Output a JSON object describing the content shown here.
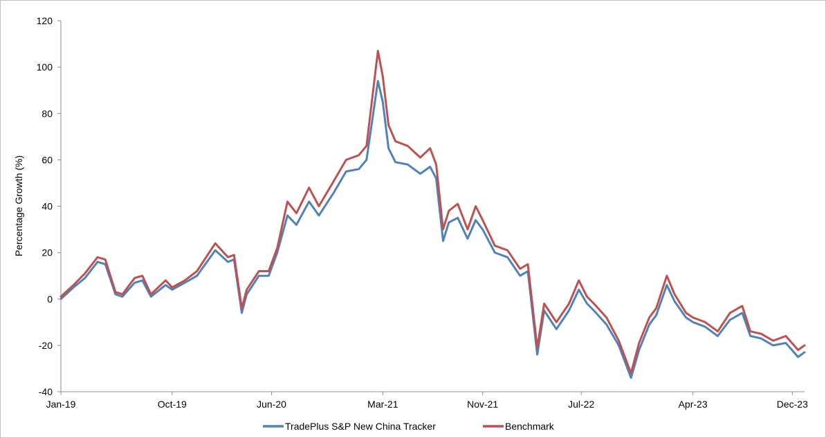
{
  "chart_data": {
    "type": "line",
    "title": "",
    "xlabel": "",
    "ylabel": "Percentage Growth (%)",
    "ylim": [
      -40,
      120
    ],
    "yticks": [
      -40,
      -20,
      0,
      20,
      40,
      60,
      80,
      100,
      120
    ],
    "x_range": [
      "2019-01-01",
      "2023-12-31"
    ],
    "xticks": [
      {
        "date": "2019-01-01",
        "label": "Jan-19"
      },
      {
        "date": "2019-10-01",
        "label": "Oct-19"
      },
      {
        "date": "2020-06-01",
        "label": "Jun-20"
      },
      {
        "date": "2021-03-01",
        "label": "Mar-21"
      },
      {
        "date": "2021-11-01",
        "label": "Nov-21"
      },
      {
        "date": "2022-07-01",
        "label": "Jul-22"
      },
      {
        "date": "2023-04-01",
        "label": "Apr-23"
      },
      {
        "date": "2023-12-01",
        "label": "Dec-23"
      }
    ],
    "grid": false,
    "legend": "bottom",
    "series": [
      {
        "name": "TradePlus S&P New China Tracker",
        "color": "#4f81bd",
        "points": [
          [
            "2019-01-01",
            0
          ],
          [
            "2019-02-01",
            5
          ],
          [
            "2019-03-01",
            9
          ],
          [
            "2019-04-01",
            16
          ],
          [
            "2019-04-20",
            15
          ],
          [
            "2019-05-15",
            2
          ],
          [
            "2019-06-01",
            1
          ],
          [
            "2019-07-01",
            7
          ],
          [
            "2019-07-20",
            8
          ],
          [
            "2019-08-10",
            1
          ],
          [
            "2019-09-15",
            6
          ],
          [
            "2019-10-01",
            4
          ],
          [
            "2019-11-01",
            7
          ],
          [
            "2019-12-01",
            10
          ],
          [
            "2020-01-15",
            21
          ],
          [
            "2020-02-15",
            16
          ],
          [
            "2020-03-01",
            17
          ],
          [
            "2020-03-20",
            -6
          ],
          [
            "2020-04-01",
            2
          ],
          [
            "2020-05-01",
            10
          ],
          [
            "2020-05-25",
            10
          ],
          [
            "2020-06-15",
            20
          ],
          [
            "2020-07-10",
            36
          ],
          [
            "2020-08-01",
            32
          ],
          [
            "2020-09-01",
            42
          ],
          [
            "2020-09-25",
            36
          ],
          [
            "2020-11-01",
            46
          ],
          [
            "2020-12-01",
            55
          ],
          [
            "2021-01-01",
            56
          ],
          [
            "2021-01-20",
            60
          ],
          [
            "2021-02-17",
            94
          ],
          [
            "2021-03-01",
            85
          ],
          [
            "2021-03-15",
            65
          ],
          [
            "2021-04-01",
            59
          ],
          [
            "2021-05-01",
            58
          ],
          [
            "2021-06-01",
            54
          ],
          [
            "2021-06-25",
            57
          ],
          [
            "2021-07-10",
            52
          ],
          [
            "2021-07-27",
            25
          ],
          [
            "2021-08-10",
            33
          ],
          [
            "2021-09-01",
            35
          ],
          [
            "2021-09-25",
            26
          ],
          [
            "2021-10-15",
            34
          ],
          [
            "2021-11-01",
            30
          ],
          [
            "2021-12-01",
            20
          ],
          [
            "2022-01-01",
            18
          ],
          [
            "2022-02-01",
            10
          ],
          [
            "2022-02-20",
            12
          ],
          [
            "2022-03-15",
            -24
          ],
          [
            "2022-04-01",
            -5
          ],
          [
            "2022-05-01",
            -13
          ],
          [
            "2022-06-01",
            -5
          ],
          [
            "2022-06-25",
            4
          ],
          [
            "2022-07-15",
            -2
          ],
          [
            "2022-08-01",
            -5
          ],
          [
            "2022-09-01",
            -11
          ],
          [
            "2022-10-01",
            -20
          ],
          [
            "2022-10-31",
            -34
          ],
          [
            "2022-11-20",
            -22
          ],
          [
            "2022-12-15",
            -11
          ],
          [
            "2023-01-01",
            -7
          ],
          [
            "2023-01-27",
            6
          ],
          [
            "2023-02-15",
            -1
          ],
          [
            "2023-03-15",
            -8
          ],
          [
            "2023-04-01",
            -10
          ],
          [
            "2023-05-01",
            -12
          ],
          [
            "2023-06-01",
            -16
          ],
          [
            "2023-07-01",
            -9
          ],
          [
            "2023-07-31",
            -6
          ],
          [
            "2023-08-20",
            -16
          ],
          [
            "2023-09-15",
            -17
          ],
          [
            "2023-10-15",
            -20
          ],
          [
            "2023-11-15",
            -19
          ],
          [
            "2023-12-15",
            -25
          ],
          [
            "2023-12-31",
            -23
          ]
        ]
      },
      {
        "name": "Benchmark",
        "color": "#c0504d",
        "points": [
          [
            "2019-01-01",
            1
          ],
          [
            "2019-02-01",
            6
          ],
          [
            "2019-03-01",
            11
          ],
          [
            "2019-04-01",
            18
          ],
          [
            "2019-04-20",
            17
          ],
          [
            "2019-05-15",
            3
          ],
          [
            "2019-06-01",
            2
          ],
          [
            "2019-07-01",
            9
          ],
          [
            "2019-07-20",
            10
          ],
          [
            "2019-08-10",
            2
          ],
          [
            "2019-09-15",
            8
          ],
          [
            "2019-10-01",
            5
          ],
          [
            "2019-11-01",
            8
          ],
          [
            "2019-12-01",
            12
          ],
          [
            "2020-01-15",
            24
          ],
          [
            "2020-02-15",
            18
          ],
          [
            "2020-03-01",
            19
          ],
          [
            "2020-03-20",
            -4
          ],
          [
            "2020-04-01",
            4
          ],
          [
            "2020-05-01",
            12
          ],
          [
            "2020-05-25",
            12
          ],
          [
            "2020-06-15",
            22
          ],
          [
            "2020-07-10",
            42
          ],
          [
            "2020-08-01",
            37
          ],
          [
            "2020-09-01",
            48
          ],
          [
            "2020-09-25",
            40
          ],
          [
            "2020-11-01",
            51
          ],
          [
            "2020-12-01",
            60
          ],
          [
            "2021-01-01",
            62
          ],
          [
            "2021-01-20",
            66
          ],
          [
            "2021-02-17",
            107
          ],
          [
            "2021-03-01",
            96
          ],
          [
            "2021-03-15",
            75
          ],
          [
            "2021-04-01",
            68
          ],
          [
            "2021-05-01",
            66
          ],
          [
            "2021-06-01",
            61
          ],
          [
            "2021-06-25",
            65
          ],
          [
            "2021-07-10",
            58
          ],
          [
            "2021-07-27",
            30
          ],
          [
            "2021-08-10",
            38
          ],
          [
            "2021-09-01",
            41
          ],
          [
            "2021-09-25",
            30
          ],
          [
            "2021-10-15",
            40
          ],
          [
            "2021-11-01",
            34
          ],
          [
            "2021-12-01",
            23
          ],
          [
            "2022-01-01",
            21
          ],
          [
            "2022-02-01",
            13
          ],
          [
            "2022-02-20",
            15
          ],
          [
            "2022-03-15",
            -21
          ],
          [
            "2022-04-01",
            -2
          ],
          [
            "2022-05-01",
            -10
          ],
          [
            "2022-06-01",
            -2
          ],
          [
            "2022-06-25",
            8
          ],
          [
            "2022-07-15",
            1
          ],
          [
            "2022-08-01",
            -2
          ],
          [
            "2022-09-01",
            -8
          ],
          [
            "2022-10-01",
            -18
          ],
          [
            "2022-10-31",
            -32
          ],
          [
            "2022-11-20",
            -19
          ],
          [
            "2022-12-15",
            -8
          ],
          [
            "2023-01-01",
            -4
          ],
          [
            "2023-01-27",
            10
          ],
          [
            "2023-02-15",
            2
          ],
          [
            "2023-03-15",
            -6
          ],
          [
            "2023-04-01",
            -8
          ],
          [
            "2023-05-01",
            -10
          ],
          [
            "2023-06-01",
            -14
          ],
          [
            "2023-07-01",
            -6
          ],
          [
            "2023-07-31",
            -3
          ],
          [
            "2023-08-20",
            -14
          ],
          [
            "2023-09-15",
            -15
          ],
          [
            "2023-10-15",
            -18
          ],
          [
            "2023-11-15",
            -16
          ],
          [
            "2023-12-15",
            -22
          ],
          [
            "2023-12-31",
            -20
          ]
        ]
      }
    ]
  }
}
